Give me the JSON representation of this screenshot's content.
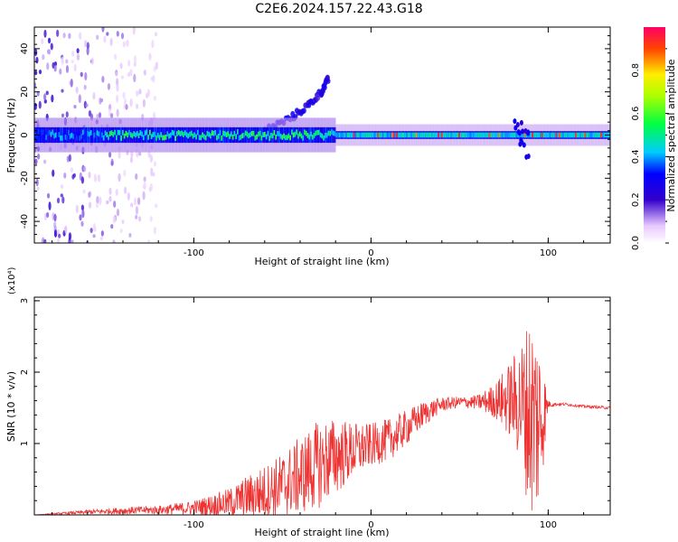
{
  "title": "C2E6.2024.157.22.43.G18",
  "colorbar": {
    "label": "Normalized spectral amplitude",
    "ticks": [
      0.0,
      0.2,
      0.4,
      0.6,
      0.8
    ],
    "tick_labels": [
      "0.0",
      "0.2",
      "0.4",
      "0.6",
      "0.8"
    ]
  },
  "chart_data": [
    {
      "type": "heatmap",
      "title": "",
      "xlabel": "Height of straight line (km)",
      "ylabel": "Frequency (Hz)",
      "xlim": [
        -190,
        135
      ],
      "ylim": [
        -50,
        50
      ],
      "xticks": [
        -100,
        0,
        100
      ],
      "yticks": [
        -40,
        -20,
        0,
        20,
        40
      ],
      "ytick_labels": [
        "-40",
        "-20",
        "0",
        "20",
        "40"
      ],
      "colorscale": "rainbow, 0 (white/violet) to 1 (red/magenta)",
      "features": {
        "main_ridge_frequency_hz": 0,
        "ridge_width_hz_left_of_0km": 6,
        "ridge_width_hz_right_of_0km": 3,
        "rising_branch": [
          [
            -60,
            2
          ],
          [
            -45,
            8
          ],
          [
            -35,
            14
          ],
          [
            -28,
            20
          ],
          [
            -24,
            26
          ]
        ],
        "broadband_noise_below_km": -120,
        "disturbance_near_km": 85
      }
    },
    {
      "type": "line",
      "title": "",
      "xlabel": "Height of straight line (km)",
      "ylabel": "SNR (10 * v/v)",
      "y_multiplier": "(x10⁴)",
      "xlim": [
        -190,
        135
      ],
      "ylim": [
        0,
        3.05
      ],
      "xticks": [
        -100,
        0,
        100
      ],
      "yticks": [
        1,
        2,
        3
      ],
      "ytick_labels": [
        "1",
        "2",
        "3"
      ],
      "color": "#ee3333",
      "series": [
        {
          "x": [
            -190,
            -160,
            -140,
            -120,
            -100,
            -80,
            -70,
            -60,
            -50,
            -40,
            -30,
            -20,
            -10,
            0,
            10,
            20,
            30,
            40,
            50,
            60,
            70,
            80,
            85,
            90,
            95,
            100,
            105,
            110,
            120,
            135
          ],
          "y": [
            0.0,
            0.04,
            0.06,
            0.07,
            0.1,
            0.17,
            0.25,
            0.32,
            0.42,
            0.55,
            0.7,
            0.82,
            0.9,
            0.98,
            1.05,
            1.22,
            1.42,
            1.55,
            1.58,
            1.58,
            1.6,
            1.62,
            1.55,
            1.4,
            1.3,
            1.55,
            1.55,
            1.55,
            1.52,
            1.5
          ],
          "fluctuation_amplitude": [
            0.0,
            0.03,
            0.05,
            0.06,
            0.1,
            0.2,
            0.3,
            0.38,
            0.45,
            0.55,
            0.62,
            0.55,
            0.4,
            0.3,
            0.3,
            0.25,
            0.18,
            0.1,
            0.08,
            0.1,
            0.25,
            0.6,
            0.9,
            1.5,
            1.3,
            0.05,
            0.02,
            0.02,
            0.02,
            0.02
          ]
        }
      ]
    }
  ]
}
